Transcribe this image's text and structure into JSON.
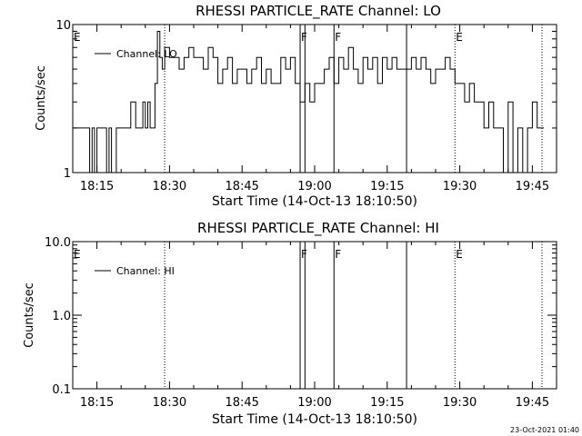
{
  "chart_data": [
    {
      "type": "line",
      "title": "RHESSI PARTICLE_RATE Channel: LO",
      "xlabel": "Start Time (14-Oct-13 18:10:50)",
      "ylabel": "Counts/sec",
      "yscale": "log",
      "ylim": [
        1,
        10
      ],
      "xlim": [
        "18:10",
        "19:50"
      ],
      "y_tick_labels": [
        "1",
        "10"
      ],
      "x_tick_labels": [
        "18:15",
        "18:30",
        "18:45",
        "19:00",
        "19:15",
        "19:30",
        "19:45"
      ],
      "legend": {
        "placement": "top-left",
        "entries": [
          "Channel: LO"
        ]
      },
      "grid": false,
      "series": [
        {
          "name": "Channel: LO",
          "x": [
            "18:10",
            "18:13",
            "18:13.5",
            "18:14",
            "18:14.5",
            "18:15",
            "18:16",
            "18:17",
            "18:17.5",
            "18:18",
            "18:19",
            "18:20",
            "18:21",
            "18:22",
            "18:23",
            "18:24",
            "18:24.5",
            "18:25",
            "18:25.5",
            "18:26",
            "18:27",
            "18:27.5",
            "18:28",
            "18:28.5",
            "18:29",
            "18:30",
            "18:31",
            "18:32",
            "18:33",
            "18:34",
            "18:35",
            "18:36",
            "18:37",
            "18:38",
            "18:39",
            "18:40",
            "18:41",
            "18:42",
            "18:43",
            "18:44",
            "18:45",
            "18:46",
            "18:47",
            "18:48",
            "18:49",
            "18:50",
            "18:51",
            "18:52",
            "18:53",
            "18:54",
            "18:55",
            "18:56",
            "18:57",
            "18:58",
            "18:59",
            "19:00",
            "19:01",
            "19:02",
            "19:03",
            "19:04",
            "19:05",
            "19:06",
            "19:07",
            "19:08",
            "19:09",
            "19:10",
            "19:11",
            "19:12",
            "19:13",
            "19:14",
            "19:15",
            "19:16",
            "19:17",
            "19:18",
            "19:19",
            "19:20",
            "19:21",
            "19:22",
            "19:23",
            "19:24",
            "19:25",
            "19:26",
            "19:27",
            "19:28",
            "19:29",
            "19:30",
            "19:31",
            "19:32",
            "19:33",
            "19:34",
            "19:35",
            "19:36",
            "19:37",
            "19:38",
            "19:39",
            "19:40",
            "19:41",
            "19:42",
            "19:43",
            "19:44",
            "19:45",
            "19:46",
            "19:47"
          ],
          "y": [
            2,
            2,
            1,
            2,
            1,
            2,
            2,
            1,
            2,
            1,
            2,
            2,
            2,
            3,
            2,
            2,
            3,
            2,
            3,
            2,
            4,
            9,
            6,
            5,
            7,
            6,
            6,
            5,
            6,
            7,
            6,
            6,
            5,
            7,
            6,
            4,
            5,
            6,
            4,
            5,
            5,
            4,
            5,
            6,
            4,
            5,
            4,
            4,
            6,
            5,
            6,
            4,
            3,
            4,
            3,
            4,
            4,
            5,
            6,
            4,
            6,
            5,
            7,
            5,
            4,
            6,
            5,
            6,
            4,
            6,
            5,
            6,
            5,
            5,
            5,
            6,
            5,
            6,
            5,
            4,
            5,
            5,
            6,
            5,
            4,
            4,
            3,
            4,
            3,
            3,
            2,
            3,
            2,
            2,
            1,
            3,
            1,
            2,
            1,
            2,
            3,
            2,
            2
          ]
        }
      ],
      "annotations": [
        {
          "label": "E",
          "x": "18:10"
        },
        {
          "label": "F",
          "x": "18:57"
        },
        {
          "label": "F",
          "x": "19:04"
        },
        {
          "label": "E",
          "x": "19:29"
        }
      ],
      "vertical_lines": [
        {
          "x": "18:29",
          "style": "dotted"
        },
        {
          "x": "18:57",
          "style": "solid"
        },
        {
          "x": "18:58",
          "style": "solid"
        },
        {
          "x": "19:04",
          "style": "solid"
        },
        {
          "x": "19:19",
          "style": "solid"
        },
        {
          "x": "19:29",
          "style": "dotted"
        },
        {
          "x": "19:47",
          "style": "dotted"
        }
      ]
    },
    {
      "type": "line",
      "title": "RHESSI PARTICLE_RATE Channel: HI",
      "xlabel": "Start Time (14-Oct-13 18:10:50)",
      "ylabel": "Counts/sec",
      "yscale": "log",
      "ylim": [
        0.1,
        10
      ],
      "xlim": [
        "18:10",
        "19:50"
      ],
      "y_tick_labels": [
        "0.1",
        "1.0",
        "10.0"
      ],
      "x_tick_labels": [
        "18:15",
        "18:30",
        "18:45",
        "19:00",
        "19:15",
        "19:30",
        "19:45"
      ],
      "legend": {
        "placement": "top-left",
        "entries": [
          "Channel: HI"
        ]
      },
      "grid": false,
      "series": [
        {
          "name": "Channel: HI",
          "x": [],
          "y": []
        }
      ],
      "annotations": [
        {
          "label": "E",
          "x": "18:10"
        },
        {
          "label": "F",
          "x": "18:57"
        },
        {
          "label": "F",
          "x": "19:04"
        },
        {
          "label": "E",
          "x": "19:29"
        }
      ],
      "vertical_lines": [
        {
          "x": "18:29",
          "style": "dotted"
        },
        {
          "x": "18:57",
          "style": "solid"
        },
        {
          "x": "18:58",
          "style": "solid"
        },
        {
          "x": "19:04",
          "style": "solid"
        },
        {
          "x": "19:19",
          "style": "solid"
        },
        {
          "x": "19:29",
          "style": "dotted"
        },
        {
          "x": "19:47",
          "style": "dotted"
        }
      ]
    }
  ],
  "footer": {
    "timestamp": "23-Oct-2021 01:40"
  },
  "colors": {
    "background": "#ffffff",
    "foreground": "#000000"
  }
}
